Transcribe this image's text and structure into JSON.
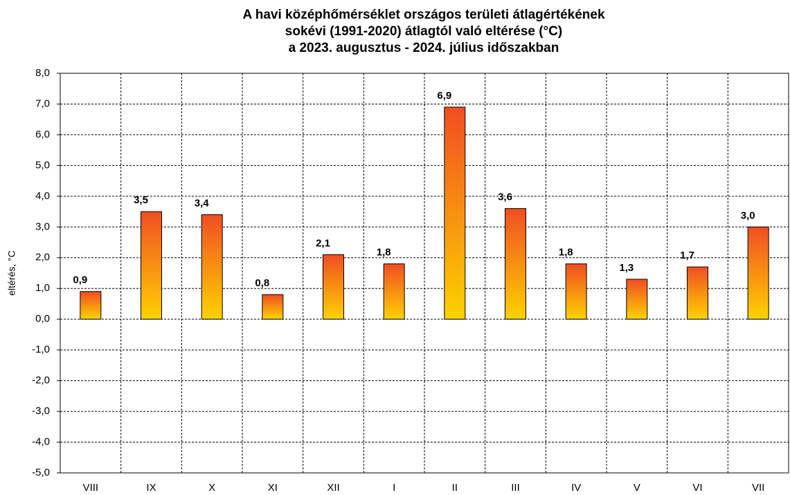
{
  "chart_data": {
    "type": "bar",
    "title": [
      "A havi középhőmérséklet országos területi átlagértékének",
      "sokévi (1991-2020) átlagtól  való eltérése (°C)",
      "a 2023. augusztus - 2024. július időszakban"
    ],
    "y_label": "eltérés, °C",
    "categories": [
      "VIII",
      "IX",
      "X",
      "XI",
      "XII",
      "I",
      "II",
      "III",
      "IV",
      "V",
      "VI",
      "VII"
    ],
    "values": [
      0.9,
      3.5,
      3.4,
      0.8,
      2.1,
      1.8,
      6.9,
      3.6,
      1.8,
      1.3,
      1.7,
      3.0
    ],
    "value_labels": [
      "0,9",
      "3,5",
      "3,4",
      "0,8",
      "2,1",
      "1,8",
      "6,9",
      "3,6",
      "1,8",
      "1,3",
      "1,7",
      "3,0"
    ],
    "color": [
      "#f04e23",
      "#ffd200"
    ],
    "ylim": [
      -5,
      8
    ],
    "yticks": [
      {
        "value": -5,
        "label": "-5,0"
      },
      {
        "value": -4,
        "label": "-4,0"
      },
      {
        "value": -3,
        "label": "-3,0"
      },
      {
        "value": -2,
        "label": "-2,0"
      },
      {
        "value": -1,
        "label": "-1,0"
      },
      {
        "value": 0,
        "label": "0,0"
      },
      {
        "value": 1,
        "label": "1,0"
      },
      {
        "value": 2,
        "label": "2,0"
      },
      {
        "value": 3,
        "label": "3,0"
      },
      {
        "value": 4,
        "label": "4,0"
      },
      {
        "value": 5,
        "label": "5,0"
      },
      {
        "value": 6,
        "label": "6,0"
      },
      {
        "value": 7,
        "label": "7,0"
      },
      {
        "value": 8,
        "label": "8,0"
      }
    ],
    "grid": true
  }
}
